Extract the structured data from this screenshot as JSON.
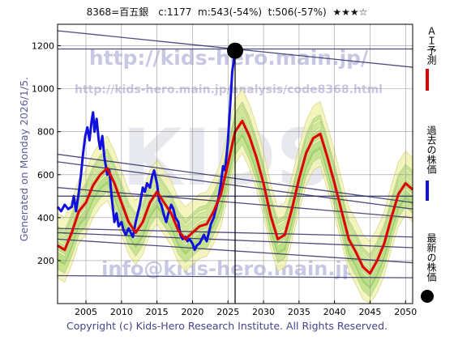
{
  "header": {
    "title": "8368=百五銀　c:1177  m:543(-54%)  t:506(-57%)  ★★★☆"
  },
  "side_labels": {
    "generated": "Generated on Monday 2026/1/5.",
    "copyright": "Copyright (c) Kids-Hero Research Institute. All Rights Reserved."
  },
  "watermarks": {
    "main": "KIDS",
    "url_top": "http://kids-hero.main.jp/",
    "url_analysis": "http://kids-hero.main.jp/analysis/code8368.html",
    "email": "info@kids-hero.main.jp"
  },
  "legend": [
    {
      "label": "ＡＩ予測",
      "color": "#e00000"
    },
    {
      "label": "過去の株価",
      "color": "#1010e0"
    },
    {
      "label": "最新の株価",
      "color": "#000000"
    }
  ],
  "chart_data": {
    "type": "line",
    "title": "",
    "xlabel": "",
    "ylabel": "",
    "xlim": [
      2001,
      2051
    ],
    "ylim": [
      0,
      1300
    ],
    "x_ticks": [
      2005,
      2010,
      2015,
      2020,
      2025,
      2030,
      2035,
      2040,
      2045,
      2050
    ],
    "y_ticks": [
      200,
      400,
      600,
      800,
      1000,
      1200
    ],
    "grid": true,
    "current_point": {
      "x": 2026.0,
      "y": 1177
    },
    "series": [
      {
        "name": "過去の株価",
        "color": "#1010e0",
        "points": [
          [
            2001.0,
            450
          ],
          [
            2001.5,
            430
          ],
          [
            2002.0,
            460
          ],
          [
            2002.5,
            440
          ],
          [
            2003.0,
            450
          ],
          [
            2003.3,
            500
          ],
          [
            2003.6,
            430
          ],
          [
            2004.0,
            520
          ],
          [
            2004.3,
            600
          ],
          [
            2004.6,
            700
          ],
          [
            2004.9,
            780
          ],
          [
            2005.2,
            820
          ],
          [
            2005.5,
            760
          ],
          [
            2005.8,
            850
          ],
          [
            2006.0,
            890
          ],
          [
            2006.2,
            800
          ],
          [
            2006.5,
            860
          ],
          [
            2006.8,
            760
          ],
          [
            2007.0,
            720
          ],
          [
            2007.3,
            780
          ],
          [
            2007.6,
            680
          ],
          [
            2008.0,
            600
          ],
          [
            2008.3,
            620
          ],
          [
            2008.6,
            500
          ],
          [
            2009.0,
            380
          ],
          [
            2009.3,
            420
          ],
          [
            2009.6,
            360
          ],
          [
            2010.0,
            380
          ],
          [
            2010.3,
            340
          ],
          [
            2010.6,
            320
          ],
          [
            2011.0,
            350
          ],
          [
            2011.3,
            330
          ],
          [
            2011.6,
            310
          ],
          [
            2012.0,
            380
          ],
          [
            2012.3,
            420
          ],
          [
            2012.6,
            460
          ],
          [
            2013.0,
            540
          ],
          [
            2013.3,
            520
          ],
          [
            2013.6,
            560
          ],
          [
            2014.0,
            540
          ],
          [
            2014.3,
            590
          ],
          [
            2014.6,
            620
          ],
          [
            2015.0,
            560
          ],
          [
            2015.3,
            480
          ],
          [
            2015.6,
            460
          ],
          [
            2016.0,
            410
          ],
          [
            2016.3,
            380
          ],
          [
            2016.6,
            420
          ],
          [
            2017.0,
            460
          ],
          [
            2017.3,
            440
          ],
          [
            2017.6,
            400
          ],
          [
            2018.0,
            380
          ],
          [
            2018.3,
            320
          ],
          [
            2018.6,
            300
          ],
          [
            2019.0,
            310
          ],
          [
            2019.3,
            290
          ],
          [
            2019.6,
            300
          ],
          [
            2020.0,
            280
          ],
          [
            2020.3,
            250
          ],
          [
            2020.6,
            270
          ],
          [
            2021.0,
            280
          ],
          [
            2021.3,
            300
          ],
          [
            2021.6,
            320
          ],
          [
            2022.0,
            290
          ],
          [
            2022.3,
            330
          ],
          [
            2022.6,
            370
          ],
          [
            2023.0,
            400
          ],
          [
            2023.3,
            440
          ],
          [
            2023.6,
            480
          ],
          [
            2024.0,
            560
          ],
          [
            2024.3,
            640
          ],
          [
            2024.6,
            620
          ],
          [
            2025.0,
            760
          ],
          [
            2025.3,
            920
          ],
          [
            2025.6,
            1080
          ],
          [
            2026.0,
            1177
          ]
        ]
      },
      {
        "name": "ＡＩ予測",
        "color": "#e00000",
        "points": [
          [
            2001.0,
            270
          ],
          [
            2002.0,
            250
          ],
          [
            2003.0,
            330
          ],
          [
            2004.0,
            430
          ],
          [
            2005.0,
            470
          ],
          [
            2006.0,
            550
          ],
          [
            2007.0,
            600
          ],
          [
            2008.0,
            630
          ],
          [
            2009.0,
            560
          ],
          [
            2010.0,
            470
          ],
          [
            2011.0,
            380
          ],
          [
            2012.0,
            330
          ],
          [
            2013.0,
            380
          ],
          [
            2014.0,
            470
          ],
          [
            2015.0,
            520
          ],
          [
            2016.0,
            470
          ],
          [
            2017.0,
            420
          ],
          [
            2018.0,
            340
          ],
          [
            2019.0,
            300
          ],
          [
            2020.0,
            330
          ],
          [
            2021.0,
            360
          ],
          [
            2022.0,
            370
          ],
          [
            2023.0,
            430
          ],
          [
            2024.0,
            510
          ],
          [
            2025.0,
            650
          ],
          [
            2026.0,
            800
          ],
          [
            2027.0,
            850
          ],
          [
            2028.0,
            780
          ],
          [
            2029.0,
            680
          ],
          [
            2030.0,
            560
          ],
          [
            2031.0,
            410
          ],
          [
            2032.0,
            300
          ],
          [
            2033.0,
            320
          ],
          [
            2034.0,
            440
          ],
          [
            2035.0,
            580
          ],
          [
            2036.0,
            700
          ],
          [
            2037.0,
            770
          ],
          [
            2038.0,
            790
          ],
          [
            2039.0,
            680
          ],
          [
            2040.0,
            560
          ],
          [
            2041.0,
            430
          ],
          [
            2042.0,
            300
          ],
          [
            2043.0,
            240
          ],
          [
            2044.0,
            170
          ],
          [
            2045.0,
            140
          ],
          [
            2046.0,
            200
          ],
          [
            2047.0,
            280
          ],
          [
            2048.0,
            400
          ],
          [
            2049.0,
            510
          ],
          [
            2050.0,
            560
          ],
          [
            2051.0,
            530
          ]
        ]
      }
    ],
    "trend_lines": [
      [
        [
          2001.0,
          1270
        ],
        [
          2051.0,
          1100
        ]
      ],
      [
        [
          2001.0,
          1185
        ],
        [
          2051.0,
          1185
        ]
      ],
      [
        [
          2001.0,
          695
        ],
        [
          2051.0,
          470
        ]
      ],
      [
        [
          2001.0,
          660
        ],
        [
          2051.0,
          440
        ]
      ],
      [
        [
          2001.0,
          540
        ],
        [
          2051.0,
          400
        ]
      ],
      [
        [
          2001.0,
          500
        ],
        [
          2051.0,
          500
        ]
      ],
      [
        [
          2001.0,
          350
        ],
        [
          2051.0,
          310
        ]
      ],
      [
        [
          2001.0,
          330
        ],
        [
          2051.0,
          260
        ]
      ],
      [
        [
          2001.0,
          300
        ],
        [
          2051.0,
          190
        ]
      ],
      [
        [
          2001.0,
          130
        ],
        [
          2051.0,
          120
        ]
      ]
    ]
  }
}
